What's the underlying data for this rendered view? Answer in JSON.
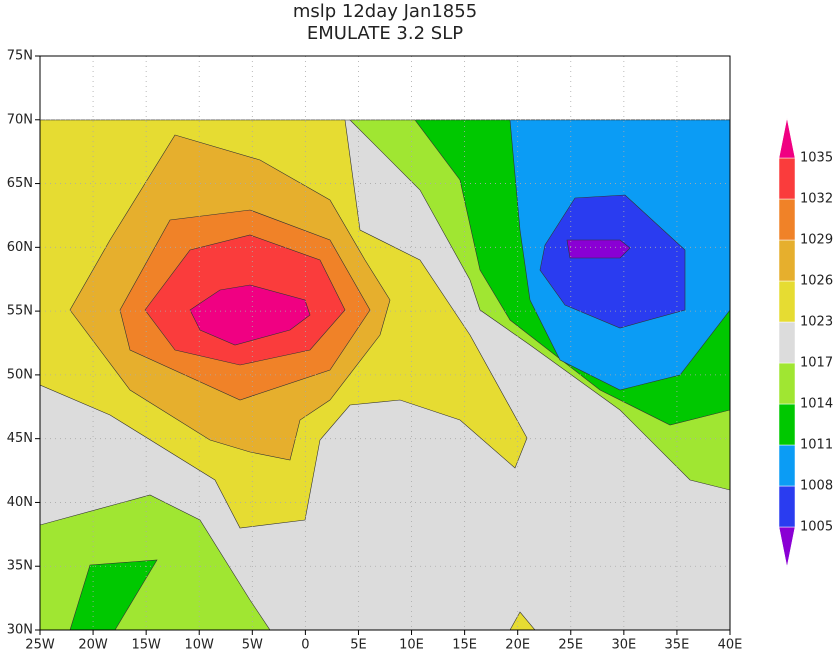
{
  "chart_data": {
    "type": "contour",
    "title": "mslp 12day Jan1855",
    "subtitle": "EMULATE 3.2 SLP",
    "xlim": [
      -25,
      40
    ],
    "ylim": [
      30,
      75
    ],
    "xticks": [
      {
        "value": -25,
        "label": "25W"
      },
      {
        "value": -20,
        "label": "20W"
      },
      {
        "value": -15,
        "label": "15W"
      },
      {
        "value": -10,
        "label": "10W"
      },
      {
        "value": -5,
        "label": "5W"
      },
      0,
      {
        "value": 5,
        "label": "5E"
      },
      {
        "value": 10,
        "label": "10E"
      },
      {
        "value": 15,
        "label": "15E"
      },
      {
        "value": 20,
        "label": "20E"
      },
      {
        "value": 25,
        "label": "25E"
      },
      {
        "value": 30,
        "label": "30E"
      },
      {
        "value": 35,
        "label": "35E"
      },
      {
        "value": 40,
        "label": "40E"
      }
    ],
    "yticks": [
      {
        "value": 30,
        "label": "30N"
      },
      {
        "value": 35,
        "label": "35N"
      },
      {
        "value": 40,
        "label": "40N"
      },
      {
        "value": 45,
        "label": "45N"
      },
      {
        "value": 50,
        "label": "50N"
      },
      {
        "value": 55,
        "label": "55N"
      },
      {
        "value": 60,
        "label": "60N"
      },
      {
        "value": 65,
        "label": "65N"
      },
      {
        "value": 70,
        "label": "70N"
      },
      {
        "value": 75,
        "label": "75N"
      }
    ],
    "grid": true,
    "levels": [
      1005,
      1008,
      1011,
      1014,
      1017,
      1023,
      1026,
      1029,
      1032,
      1035
    ],
    "colors": [
      "#8a00d4",
      "#2a3cf0",
      "#0b9cf5",
      "#00c800",
      "#a0e632",
      "#dcdcdc",
      "#e6dc32",
      "#e6af2d",
      "#f08228",
      "#fa3c3c",
      "#f00082"
    ]
  }
}
